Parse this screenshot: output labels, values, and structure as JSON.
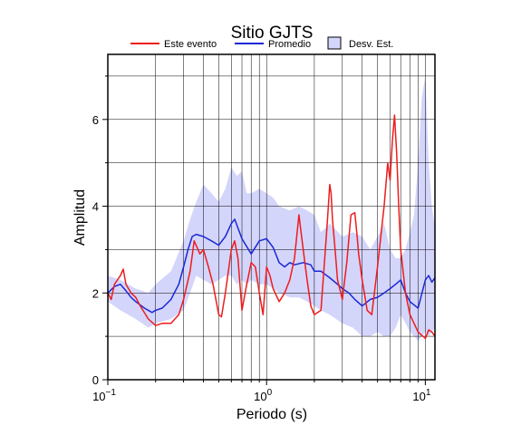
{
  "chart_data": {
    "type": "line",
    "title": "Sitio GJTS",
    "xlabel": "Periodo (s)",
    "ylabel": "Amplitud",
    "x_scale": "log",
    "xlim": [
      0.1,
      11.5
    ],
    "ylim": [
      0,
      7.5
    ],
    "grid": true,
    "legend_position": "top",
    "x_ticks": [
      {
        "value": 0.1,
        "base": "10",
        "exp": "−1"
      },
      {
        "value": 1,
        "base": "10",
        "exp": "0"
      },
      {
        "value": 10,
        "base": "10",
        "exp": "1"
      }
    ],
    "y_ticks": [
      {
        "value": 0,
        "label": "0"
      },
      {
        "value": 2,
        "label": "2"
      },
      {
        "value": 4,
        "label": "4"
      },
      {
        "value": 6,
        "label": "6"
      }
    ],
    "legend": [
      {
        "label": "Este evento",
        "kind": "line",
        "color": "#ee1c1c"
      },
      {
        "label": "Promedio",
        "kind": "line",
        "color": "#1a28d6"
      },
      {
        "label": "Desv. Est.",
        "kind": "band",
        "color": "#d4d5fb"
      }
    ],
    "band": {
      "name": "Desv. Est.",
      "color": "#d4d5fb",
      "x": [
        0.1,
        0.12,
        0.15,
        0.18,
        0.2,
        0.25,
        0.3,
        0.33,
        0.36,
        0.4,
        0.45,
        0.5,
        0.55,
        0.6,
        0.65,
        0.7,
        0.75,
        0.8,
        0.9,
        1.0,
        1.1,
        1.2,
        1.4,
        1.6,
        1.8,
        2.0,
        2.2,
        2.5,
        3.0,
        3.5,
        4.0,
        4.5,
        5.0,
        5.5,
        6.0,
        6.5,
        7.0,
        7.5,
        8.0,
        8.5,
        9.0,
        9.5,
        10.0,
        10.5,
        11.0,
        11.5
      ],
      "lower": [
        1.8,
        1.6,
        1.4,
        1.2,
        1.3,
        1.4,
        1.6,
        2.0,
        2.4,
        2.3,
        2.2,
        2.3,
        2.4,
        2.4,
        2.2,
        2.3,
        2.2,
        2.3,
        2.2,
        2.2,
        2.1,
        2.0,
        1.9,
        1.9,
        1.8,
        1.7,
        1.6,
        1.5,
        1.3,
        1.2,
        1.0,
        1.0,
        1.1,
        1.0,
        1.0,
        1.2,
        1.5,
        1.3,
        1.1,
        1.0,
        0.9,
        1.0,
        1.1,
        1.0,
        1.1,
        1.2
      ],
      "upper": [
        2.4,
        2.3,
        2.1,
        2.0,
        2.2,
        2.5,
        3.2,
        3.7,
        4.1,
        4.5,
        4.3,
        4.1,
        4.4,
        4.9,
        4.7,
        4.8,
        4.3,
        4.3,
        4.4,
        4.3,
        4.2,
        4.0,
        3.9,
        4.0,
        3.9,
        3.8,
        3.4,
        3.6,
        3.3,
        3.4,
        3.3,
        3.0,
        3.3,
        3.6,
        3.0,
        2.8,
        2.8,
        3.0,
        3.4,
        3.8,
        5.0,
        6.5,
        7.0,
        5.0,
        4.0,
        3.5
      ]
    },
    "series": [
      {
        "name": "Promedio",
        "color": "#1a28d6",
        "x": [
          0.1,
          0.11,
          0.12,
          0.13,
          0.14,
          0.15,
          0.17,
          0.19,
          0.2,
          0.22,
          0.25,
          0.28,
          0.3,
          0.32,
          0.34,
          0.36,
          0.4,
          0.45,
          0.5,
          0.55,
          0.6,
          0.63,
          0.7,
          0.8,
          0.9,
          1.0,
          1.1,
          1.2,
          1.3,
          1.4,
          1.5,
          1.7,
          1.9,
          2.0,
          2.2,
          2.5,
          2.8,
          3.0,
          3.3,
          3.6,
          4.0,
          4.5,
          5.0,
          5.5,
          6.0,
          6.5,
          7.0,
          7.5,
          8.0,
          9.0,
          10.0,
          10.5,
          11.0,
          11.5
        ],
        "y": [
          2.0,
          2.15,
          2.2,
          2.05,
          1.9,
          1.8,
          1.65,
          1.55,
          1.6,
          1.65,
          1.85,
          2.2,
          2.6,
          3.0,
          3.3,
          3.35,
          3.3,
          3.2,
          3.1,
          3.3,
          3.6,
          3.7,
          3.25,
          2.9,
          3.2,
          3.25,
          3.05,
          2.7,
          2.6,
          2.7,
          2.65,
          2.7,
          2.65,
          2.5,
          2.5,
          2.35,
          2.2,
          2.1,
          2.0,
          1.85,
          1.7,
          1.85,
          1.9,
          2.0,
          2.1,
          2.2,
          2.3,
          2.0,
          1.8,
          1.65,
          2.3,
          2.4,
          2.25,
          2.35
        ]
      },
      {
        "name": "Este evento",
        "color": "#ee1c1c",
        "x": [
          0.1,
          0.105,
          0.11,
          0.12,
          0.125,
          0.13,
          0.14,
          0.15,
          0.16,
          0.18,
          0.2,
          0.22,
          0.25,
          0.28,
          0.3,
          0.33,
          0.35,
          0.38,
          0.4,
          0.43,
          0.46,
          0.5,
          0.52,
          0.55,
          0.6,
          0.63,
          0.66,
          0.7,
          0.75,
          0.8,
          0.85,
          0.9,
          0.95,
          1.0,
          1.05,
          1.1,
          1.2,
          1.3,
          1.4,
          1.5,
          1.6,
          1.7,
          1.8,
          1.9,
          2.0,
          2.2,
          2.4,
          2.5,
          2.55,
          2.6,
          2.7,
          2.8,
          3.0,
          3.2,
          3.4,
          3.6,
          3.7,
          3.8,
          4.0,
          4.3,
          4.6,
          5.0,
          5.5,
          5.8,
          6.0,
          6.2,
          6.4,
          6.6,
          6.8,
          7.0,
          7.5,
          8.0,
          9.0,
          10.0,
          10.5,
          11.0,
          11.5
        ],
        "y": [
          2.0,
          1.85,
          2.2,
          2.4,
          2.55,
          2.2,
          2.0,
          1.9,
          1.7,
          1.4,
          1.25,
          1.3,
          1.3,
          1.5,
          1.85,
          2.5,
          3.2,
          2.9,
          3.0,
          2.6,
          2.2,
          1.5,
          1.45,
          2.0,
          3.0,
          3.2,
          2.8,
          1.6,
          2.2,
          2.7,
          2.6,
          2.0,
          1.5,
          2.6,
          2.4,
          2.1,
          1.8,
          2.0,
          2.3,
          2.8,
          3.8,
          3.0,
          2.3,
          1.7,
          1.5,
          1.6,
          3.5,
          4.5,
          4.3,
          3.7,
          3.0,
          2.3,
          1.85,
          2.7,
          3.8,
          3.85,
          3.4,
          2.9,
          2.3,
          1.6,
          1.5,
          2.6,
          4.0,
          5.0,
          4.6,
          5.5,
          6.1,
          5.2,
          4.0,
          3.0,
          2.0,
          1.5,
          1.1,
          0.95,
          1.15,
          1.1,
          1.0
        ]
      }
    ]
  }
}
